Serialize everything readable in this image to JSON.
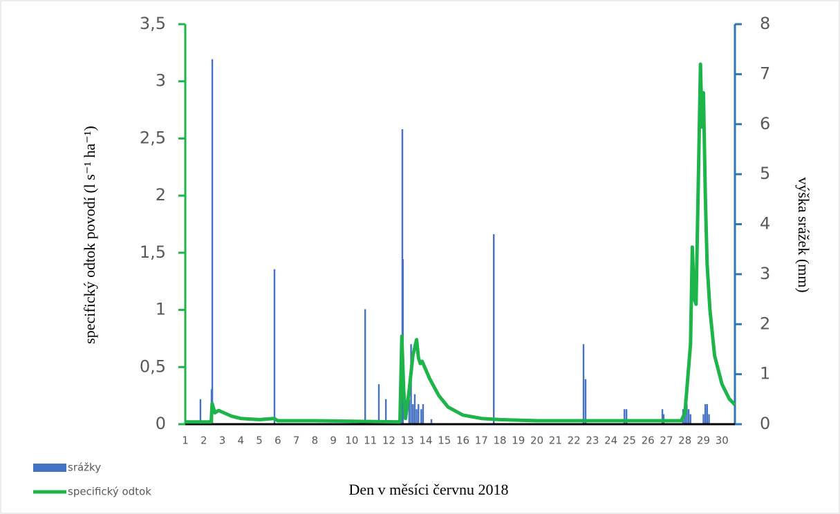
{
  "chart_data": {
    "type": "combo",
    "x_label": "Den v měsíci červnu 2018",
    "y_label": "specifický odtok povodí (l s⁻¹ ha⁻¹)",
    "y2_label": "výška srážek (mm)",
    "xlim": [
      1,
      30.7
    ],
    "xticks": [
      1,
      2,
      3,
      4,
      5,
      6,
      7,
      8,
      9,
      10,
      11,
      12,
      13,
      14,
      15,
      16,
      17,
      18,
      19,
      20,
      21,
      22,
      23,
      24,
      25,
      26,
      27,
      28,
      29,
      30
    ],
    "ylim": [
      0,
      3.5
    ],
    "yticks": [
      0,
      {
        "value": 0.5,
        "label": "0,5"
      },
      1,
      {
        "value": 1.5,
        "label": "1,5"
      },
      2,
      {
        "value": 2.5,
        "label": "2,5"
      },
      3,
      {
        "value": 3.5,
        "label": "3,5"
      }
    ],
    "y2lim": [
      0,
      8
    ],
    "y2ticks": [
      0,
      1,
      2,
      3,
      4,
      5,
      6,
      7,
      8
    ],
    "series": [
      {
        "name": "srážky",
        "type": "bar",
        "axis": "y2",
        "color": "#4472c4",
        "x": [
          1.82,
          2.42,
          2.46,
          5.82,
          10.72,
          11.46,
          11.84,
          12.73,
          12.76,
          13.1,
          13.2,
          13.3,
          13.4,
          13.5,
          13.6,
          13.75,
          13.85,
          14.3,
          17.67,
          22.52,
          22.63,
          24.73,
          24.84,
          26.78,
          26.85,
          27.9,
          28.0,
          28.1,
          28.2,
          28.3,
          29.0,
          29.1,
          29.2,
          29.3
        ],
        "values": [
          0.5,
          0.7,
          7.3,
          3.1,
          2.3,
          0.8,
          0.5,
          5.9,
          3.3,
          0.5,
          1.6,
          0.4,
          0.6,
          0.3,
          0.4,
          0.3,
          0.4,
          0.1,
          3.8,
          1.6,
          0.9,
          0.3,
          0.3,
          0.3,
          0.2,
          0.3,
          0.5,
          0.4,
          0.3,
          0.2,
          0.2,
          0.4,
          0.4,
          0.2
        ]
      },
      {
        "name": "specifický odtok",
        "type": "line",
        "color": "#1db44a",
        "x": [
          1.0,
          2.4,
          2.45,
          2.6,
          2.8,
          3.5,
          4.0,
          5.0,
          5.8,
          6.0,
          8.0,
          12.6,
          12.7,
          12.8,
          12.9,
          13.1,
          13.3,
          13.5,
          13.6,
          13.7,
          13.8,
          14.2,
          14.7,
          15.2,
          16.0,
          17.0,
          18.0,
          20.0,
          27.8,
          28.0,
          28.3,
          28.4,
          28.5,
          28.6,
          28.84,
          28.92,
          29.0,
          29.1,
          29.2,
          29.35,
          29.6,
          30.0,
          30.4,
          30.7
        ],
        "values": [
          0.02,
          0.02,
          0.18,
          0.1,
          0.12,
          0.07,
          0.05,
          0.04,
          0.05,
          0.03,
          0.03,
          0.02,
          0.77,
          0.3,
          0.05,
          0.3,
          0.6,
          0.74,
          0.58,
          0.53,
          0.55,
          0.4,
          0.25,
          0.15,
          0.08,
          0.05,
          0.04,
          0.03,
          0.03,
          0.1,
          0.7,
          1.55,
          1.1,
          1.05,
          3.15,
          2.6,
          2.9,
          2.0,
          1.4,
          1.0,
          0.6,
          0.35,
          0.22,
          0.17
        ]
      }
    ]
  }
}
